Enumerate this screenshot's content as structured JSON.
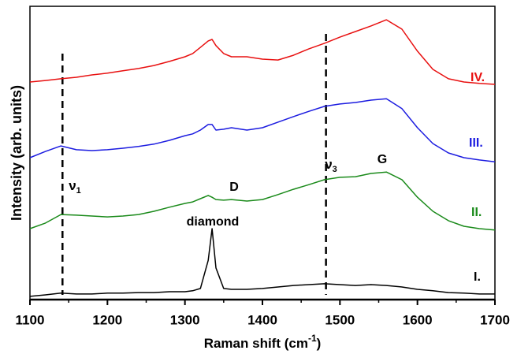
{
  "chart_data": {
    "type": "line",
    "x_label": {
      "text": "Raman shift (cm",
      "sup": "-1",
      "end": ")"
    },
    "y_label": "Intensity (arb. units)",
    "x": [
      1100,
      1120,
      1140,
      1160,
      1180,
      1200,
      1220,
      1240,
      1260,
      1280,
      1300,
      1310,
      1320,
      1330,
      1335,
      1340,
      1350,
      1360,
      1380,
      1400,
      1420,
      1440,
      1460,
      1480,
      1500,
      1520,
      1540,
      1560,
      1580,
      1600,
      1620,
      1640,
      1660,
      1680,
      1700
    ],
    "series": [
      {
        "name": "I.",
        "color": "#000000",
        "values": [
          1.1,
          1.6,
          2.2,
          1.9,
          1.9,
          2.2,
          2.2,
          2.4,
          2.4,
          2.7,
          2.7,
          3.0,
          3.8,
          13.4,
          24.2,
          10.8,
          3.8,
          3.5,
          3.5,
          3.8,
          4.3,
          4.8,
          5.1,
          5.4,
          5.1,
          4.8,
          5.1,
          4.8,
          4.3,
          3.5,
          3.0,
          2.4,
          2.2,
          1.9,
          1.9
        ]
      },
      {
        "name": "II.",
        "color": "#1a8a1a",
        "values": [
          24.2,
          26.1,
          29.0,
          28.8,
          28.5,
          28.2,
          28.5,
          29.0,
          30.1,
          31.5,
          32.8,
          33.3,
          34.4,
          35.5,
          34.9,
          34.1,
          33.9,
          34.1,
          33.6,
          34.1,
          35.8,
          37.6,
          39.2,
          40.9,
          41.7,
          41.9,
          43.0,
          43.5,
          40.9,
          34.9,
          30.1,
          26.9,
          25.0,
          24.2,
          23.7
        ]
      },
      {
        "name": "III.",
        "color": "#1c1ce0",
        "values": [
          48.4,
          50.5,
          52.4,
          51.1,
          50.8,
          51.1,
          51.6,
          52.2,
          53.0,
          54.3,
          55.9,
          56.5,
          57.8,
          59.7,
          59.7,
          57.8,
          58.1,
          58.6,
          57.8,
          58.6,
          60.5,
          62.4,
          64.2,
          65.9,
          66.7,
          67.2,
          68.0,
          68.5,
          65.1,
          58.6,
          53.2,
          50.0,
          48.4,
          47.6,
          47.0
        ]
      },
      {
        "name": "IV.",
        "color": "#e81010",
        "values": [
          74.2,
          74.7,
          75.3,
          75.8,
          76.6,
          77.2,
          78.0,
          78.8,
          79.8,
          81.2,
          82.8,
          83.9,
          86.0,
          88.2,
          88.7,
          86.6,
          83.9,
          82.8,
          82.8,
          82.0,
          81.7,
          83.3,
          85.5,
          87.4,
          89.5,
          91.4,
          93.3,
          95.4,
          92.2,
          84.7,
          78.5,
          75.3,
          74.2,
          73.7,
          73.4
        ]
      }
    ],
    "annotations": [
      {
        "text": "ν",
        "sub": "1"
      },
      {
        "text": "diamond"
      },
      {
        "text": "D"
      },
      {
        "text": "ν",
        "sub": "3"
      },
      {
        "text": "G"
      }
    ],
    "vlines": [
      1142,
      1482
    ],
    "xlim": [
      1100,
      1700
    ],
    "xticks": [
      1100,
      1200,
      1300,
      1400,
      1500,
      1600,
      1700
    ],
    "ylim": [
      0,
      100
    ]
  }
}
